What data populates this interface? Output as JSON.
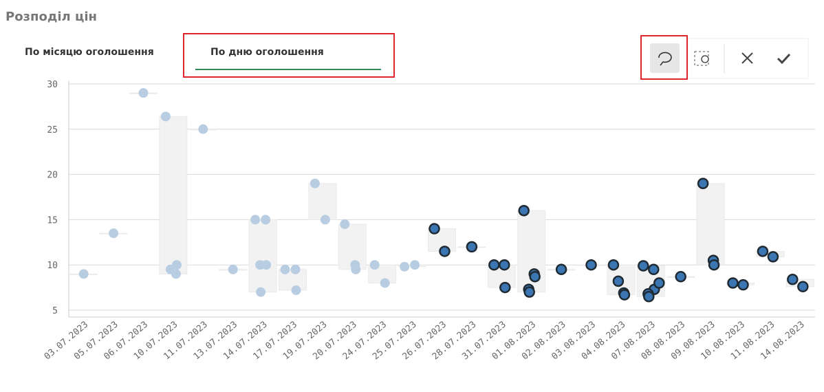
{
  "header": {
    "title": "Розподіл цін"
  },
  "tabs": [
    "По місяцю оголошення",
    "По дню оголошення"
  ],
  "chart_data": {
    "type": "distribution",
    "categories": [
      "03.07.2023",
      "05.07.2023",
      "06.07.2023",
      "10.07.2023",
      "11.07.2023",
      "13.07.2023",
      "14.07.2023",
      "17.07.2023",
      "19.07.2023",
      "20.07.2023",
      "24.07.2023",
      "25.07.2023",
      "26.07.2023",
      "28.07.2023",
      "31.07.2023",
      "01.08.2023",
      "02.08.2023",
      "03.08.2023",
      "04.08.2023",
      "07.08.2023",
      "08.08.2023",
      "09.08.2023",
      "10.08.2023",
      "11.08.2023",
      "14.08.2023"
    ],
    "values": [
      [
        9
      ],
      [
        13.5
      ],
      [
        29
      ],
      [
        26.4,
        9,
        10,
        9.5
      ],
      [
        25
      ],
      [
        9.5
      ],
      [
        15,
        15,
        10,
        10,
        7
      ],
      [
        9.5,
        9.5,
        7.2
      ],
      [
        19,
        15
      ],
      [
        14.5,
        10,
        9.5
      ],
      [
        10,
        8
      ],
      [
        9.8,
        10
      ],
      [
        14,
        11.5
      ],
      [
        12
      ],
      [
        10,
        10,
        7.5
      ],
      [
        16,
        9,
        8.7,
        7.3,
        7
      ],
      [
        9.5
      ],
      [
        10
      ],
      [
        10,
        6.9,
        6.7,
        8.2
      ],
      [
        9.9,
        9.5,
        7.3,
        6.8,
        6.5,
        8
      ],
      [
        8.7
      ],
      [
        19,
        10.5,
        10
      ],
      [
        8,
        7.8
      ],
      [
        11.5,
        10.9
      ],
      [
        8.4,
        7.6
      ]
    ],
    "colors": [
      "#b9cde2",
      "#b9cde2",
      "#b9cde2",
      "#b9cde2",
      "#b9cde2",
      "#b9cde2",
      "#b9cde2",
      "#b9cde2",
      "#b9cde2",
      "#b9cde2",
      "#b9cde2",
      "#b9cde2",
      "#3b76b2",
      "#3b76b2",
      "#3b76b2",
      "#3b76b2",
      "#3b76b2",
      "#3b76b2",
      "#3b76b2",
      "#3b76b2",
      "#3b76b2",
      "#3b76b2",
      "#3b76b2",
      "#3b76b2",
      "#3b76b2"
    ],
    "ylim": [
      5,
      30
    ],
    "yticks": [
      5,
      10,
      15,
      20,
      25,
      30
    ],
    "grid": true
  }
}
